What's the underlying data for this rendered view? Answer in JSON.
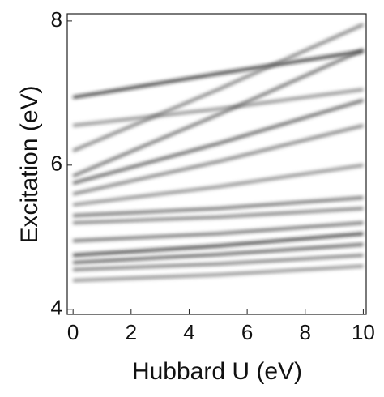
{
  "chart_data": {
    "type": "line",
    "x_label": "Hubbard U (eV)",
    "y_label": "Excitation (eV)",
    "x": [
      0,
      5,
      10
    ],
    "series": [
      {
        "color": "#1a1a1a",
        "values": [
          6.94,
          7.27,
          7.58
        ]
      },
      {
        "color": "#777777",
        "values": [
          6.55,
          6.78,
          7.05
        ]
      },
      {
        "color": "#666666",
        "values": [
          6.2,
          7.05,
          7.95
        ]
      },
      {
        "color": "#555555",
        "values": [
          5.85,
          6.7,
          7.6
        ]
      },
      {
        "color": "#444444",
        "values": [
          5.75,
          6.3,
          6.9
        ]
      },
      {
        "color": "#666666",
        "values": [
          5.6,
          6.05,
          6.55
        ]
      },
      {
        "color": "#777777",
        "values": [
          5.45,
          5.7,
          6.0
        ]
      },
      {
        "color": "#555555",
        "values": [
          5.3,
          5.4,
          5.55
        ]
      },
      {
        "color": "#666666",
        "values": [
          5.2,
          5.28,
          5.4
        ]
      },
      {
        "color": "#555555",
        "values": [
          4.95,
          5.05,
          5.2
        ]
      },
      {
        "color": "#222222",
        "values": [
          4.75,
          4.88,
          5.05
        ]
      },
      {
        "color": "#444444",
        "values": [
          4.65,
          4.76,
          4.9
        ]
      },
      {
        "color": "#666666",
        "values": [
          4.55,
          4.63,
          4.75
        ]
      },
      {
        "color": "#777777",
        "values": [
          4.4,
          4.48,
          4.6
        ]
      }
    ],
    "xlim": [
      -0.2,
      10.1
    ],
    "ylim": [
      3.93,
      8.1
    ],
    "xticks": [
      0,
      2,
      4,
      6,
      8,
      10
    ],
    "yticks": [
      4,
      6,
      8
    ]
  }
}
